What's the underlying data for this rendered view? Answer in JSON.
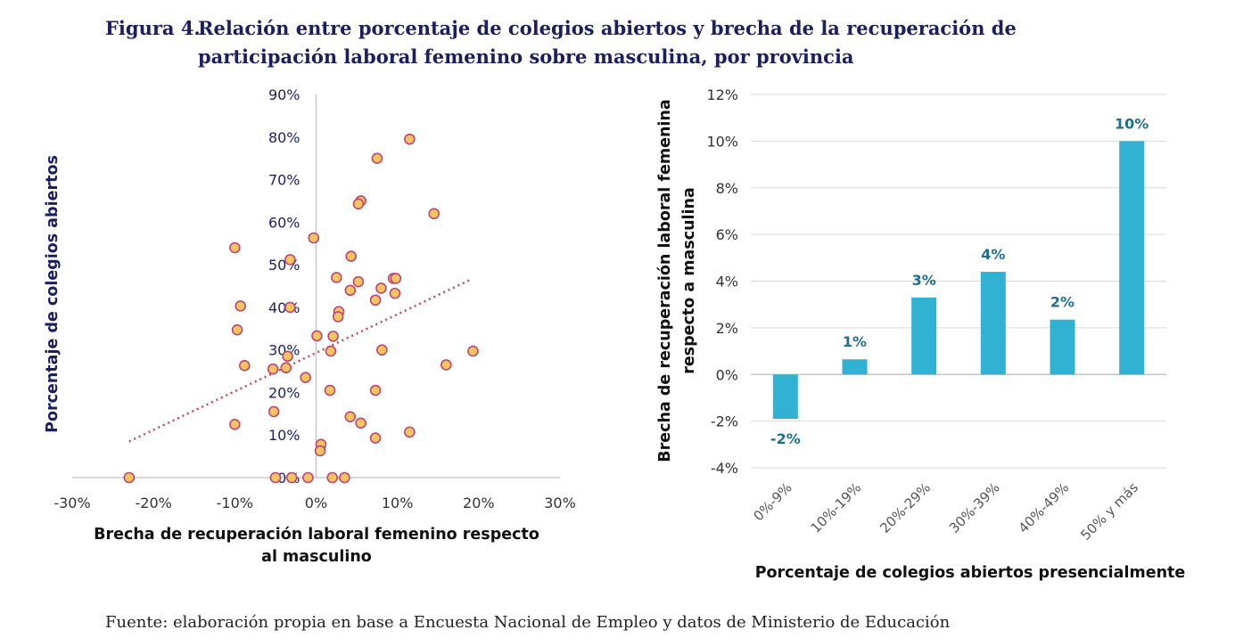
{
  "title": {
    "label": "Figura 4.",
    "line1": "Relación entre porcentaje de colegios abiertos y brecha de la recuperación de",
    "line2": "participación laboral femenino sobre masculina, por provincia"
  },
  "source": {
    "label": "Fuente:",
    "text": " elaboración propia en base a Encuesta Nacional de Empleo y datos de Ministerio de Educación"
  },
  "colors": {
    "marker_fill": "#f7c35f",
    "marker_edge": "#b8477a",
    "trendline": "#c0505a",
    "bar": "#31b2d3",
    "bar_label": "#1f6f8b",
    "axis_title_left": "#1b1f5e",
    "axis_title_right": "#111111"
  },
  "chart_data": [
    {
      "type": "scatter",
      "xlabel_line1": "Brecha de recuperación laboral femenino respecto",
      "xlabel_line2": "al masculino",
      "ylabel": "Porcentaje de colegios abiertos",
      "xlim": [
        -0.3,
        0.3
      ],
      "ylim": [
        0.0,
        0.9
      ],
      "x_ticks": [
        -0.3,
        -0.2,
        -0.1,
        0.0,
        0.1,
        0.2,
        0.3
      ],
      "x_tick_labels": [
        "-30%",
        "-20%",
        "-10%",
        "0%",
        "10%",
        "20%",
        "30%"
      ],
      "y_ticks": [
        0.0,
        0.1,
        0.2,
        0.3,
        0.4,
        0.5,
        0.6,
        0.7,
        0.8,
        0.9
      ],
      "y_tick_labels": [
        "0%",
        "10%",
        "20%",
        "30%",
        "40%",
        "50%",
        "60%",
        "70%",
        "80%",
        "90%"
      ],
      "grid": false,
      "trendline": {
        "x": [
          -0.23,
          0.19
        ],
        "y": [
          0.085,
          0.465
        ]
      },
      "points": [
        {
          "x": -0.23,
          "y": 0.0
        },
        {
          "x": -0.05,
          "y": 0.0
        },
        {
          "x": -0.03,
          "y": 0.0
        },
        {
          "x": -0.01,
          "y": 0.0
        },
        {
          "x": 0.02,
          "y": 0.0
        },
        {
          "x": 0.035,
          "y": 0.0
        },
        {
          "x": 0.115,
          "y": 0.795
        },
        {
          "x": 0.075,
          "y": 0.75
        },
        {
          "x": 0.055,
          "y": 0.65
        },
        {
          "x": 0.052,
          "y": 0.643
        },
        {
          "x": 0.145,
          "y": 0.62
        },
        {
          "x": -0.003,
          "y": 0.563
        },
        {
          "x": -0.1,
          "y": 0.54
        },
        {
          "x": 0.043,
          "y": 0.52
        },
        {
          "x": -0.032,
          "y": 0.512
        },
        {
          "x": 0.025,
          "y": 0.47
        },
        {
          "x": 0.052,
          "y": 0.46
        },
        {
          "x": 0.095,
          "y": 0.468
        },
        {
          "x": 0.098,
          "y": 0.468
        },
        {
          "x": 0.08,
          "y": 0.445
        },
        {
          "x": 0.042,
          "y": 0.44
        },
        {
          "x": 0.097,
          "y": 0.433
        },
        {
          "x": 0.073,
          "y": 0.417
        },
        {
          "x": -0.093,
          "y": 0.403
        },
        {
          "x": -0.032,
          "y": 0.4
        },
        {
          "x": 0.028,
          "y": 0.39
        },
        {
          "x": 0.027,
          "y": 0.378
        },
        {
          "x": -0.097,
          "y": 0.347
        },
        {
          "x": 0.001,
          "y": 0.333
        },
        {
          "x": 0.021,
          "y": 0.332
        },
        {
          "x": -0.035,
          "y": 0.285
        },
        {
          "x": 0.018,
          "y": 0.297
        },
        {
          "x": 0.081,
          "y": 0.3
        },
        {
          "x": 0.193,
          "y": 0.297
        },
        {
          "x": -0.088,
          "y": 0.263
        },
        {
          "x": -0.053,
          "y": 0.255
        },
        {
          "x": -0.037,
          "y": 0.258
        },
        {
          "x": 0.16,
          "y": 0.265
        },
        {
          "x": -0.013,
          "y": 0.235
        },
        {
          "x": 0.017,
          "y": 0.205
        },
        {
          "x": 0.073,
          "y": 0.205
        },
        {
          "x": -0.052,
          "y": 0.155
        },
        {
          "x": 0.042,
          "y": 0.143
        },
        {
          "x": 0.055,
          "y": 0.128
        },
        {
          "x": -0.1,
          "y": 0.125
        },
        {
          "x": 0.115,
          "y": 0.107
        },
        {
          "x": 0.073,
          "y": 0.093
        },
        {
          "x": 0.006,
          "y": 0.078
        },
        {
          "x": 0.005,
          "y": 0.063
        }
      ]
    },
    {
      "type": "bar",
      "xlabel": "Porcentaje de colegios abiertos presencialmente",
      "ylabel_line1": "Brecha de recuperación laboral femenina",
      "ylabel_line2": "respecto a masculina",
      "categories": [
        "0%-9%",
        "10%-19%",
        "20%-29%",
        "30%-39%",
        "40%-49%",
        "50% y más"
      ],
      "values": [
        -0.019,
        0.0065,
        0.033,
        0.044,
        0.0235,
        0.1
      ],
      "data_labels": [
        "-2%",
        "1%",
        "3%",
        "4%",
        "2%",
        "10%"
      ],
      "ylim": [
        -0.04,
        0.12
      ],
      "y_ticks": [
        -0.04,
        -0.02,
        0.0,
        0.02,
        0.04,
        0.06,
        0.08,
        0.1,
        0.12
      ],
      "y_tick_labels": [
        "-4%",
        "-2%",
        "0%",
        "2%",
        "4%",
        "6%",
        "8%",
        "10%",
        "12%"
      ],
      "grid": true
    }
  ]
}
